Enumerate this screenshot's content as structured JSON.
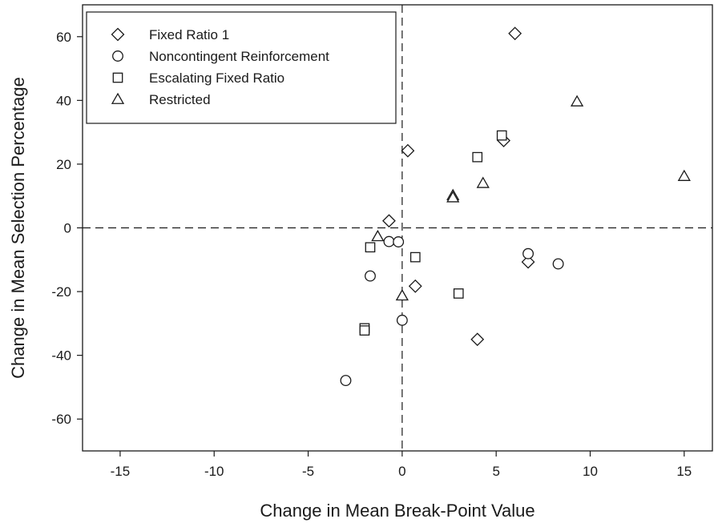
{
  "chart_data": {
    "type": "scatter",
    "title": "",
    "xlabel": "Change in Mean Break-Point Value",
    "ylabel": "Change in Mean Selection Percentage",
    "xlim": [
      -17,
      16.5
    ],
    "ylim": [
      -70,
      70
    ],
    "xticks": [
      -15,
      -10,
      -5,
      0,
      5,
      10,
      15
    ],
    "yticks": [
      -60,
      -40,
      -20,
      0,
      20,
      40,
      60
    ],
    "grid": false,
    "reference_lines": {
      "x": 0,
      "y": 0,
      "style": "dashed"
    },
    "legend_position": "top-left",
    "series": [
      {
        "name": "Fixed Ratio 1",
        "marker": "diamond",
        "points": [
          {
            "x": 6.0,
            "y": 61.0
          },
          {
            "x": 0.3,
            "y": 24.2
          },
          {
            "x": 5.4,
            "y": 27.4
          },
          {
            "x": -0.7,
            "y": 2.2
          },
          {
            "x": 0.7,
            "y": -18.3
          },
          {
            "x": 6.7,
            "y": -10.7
          },
          {
            "x": 4.0,
            "y": -35.0
          }
        ]
      },
      {
        "name": "Noncontingent Reinforcement",
        "marker": "circle",
        "points": [
          {
            "x": -0.7,
            "y": -4.3
          },
          {
            "x": -0.2,
            "y": -4.4
          },
          {
            "x": -1.7,
            "y": -15.1
          },
          {
            "x": 6.7,
            "y": -8.1
          },
          {
            "x": 8.3,
            "y": -11.3
          },
          {
            "x": 0.0,
            "y": -29.0
          },
          {
            "x": -3.0,
            "y": -47.9
          }
        ]
      },
      {
        "name": "Escalating Fixed Ratio",
        "marker": "square",
        "points": [
          {
            "x": 5.3,
            "y": 29.0
          },
          {
            "x": 4.0,
            "y": 22.2
          },
          {
            "x": -1.7,
            "y": -6.1
          },
          {
            "x": 0.7,
            "y": -9.2
          },
          {
            "x": 3.0,
            "y": -20.6
          },
          {
            "x": -2.0,
            "y": -31.5
          },
          {
            "x": -2.0,
            "y": -32.2
          }
        ]
      },
      {
        "name": "Restricted",
        "marker": "triangle",
        "points": [
          {
            "x": 9.3,
            "y": 39.6
          },
          {
            "x": 15.0,
            "y": 16.2
          },
          {
            "x": 2.7,
            "y": 10.2
          },
          {
            "x": 2.7,
            "y": 9.5
          },
          {
            "x": 4.3,
            "y": 14.0
          },
          {
            "x": -1.3,
            "y": -2.7
          },
          {
            "x": 0.0,
            "y": -21.3
          }
        ]
      }
    ]
  },
  "colors": {
    "marker_stroke": "#1a1a1a",
    "marker_fill": "#ffffff",
    "axis": "#1a1a1a",
    "text": "#1a1a1a"
  }
}
